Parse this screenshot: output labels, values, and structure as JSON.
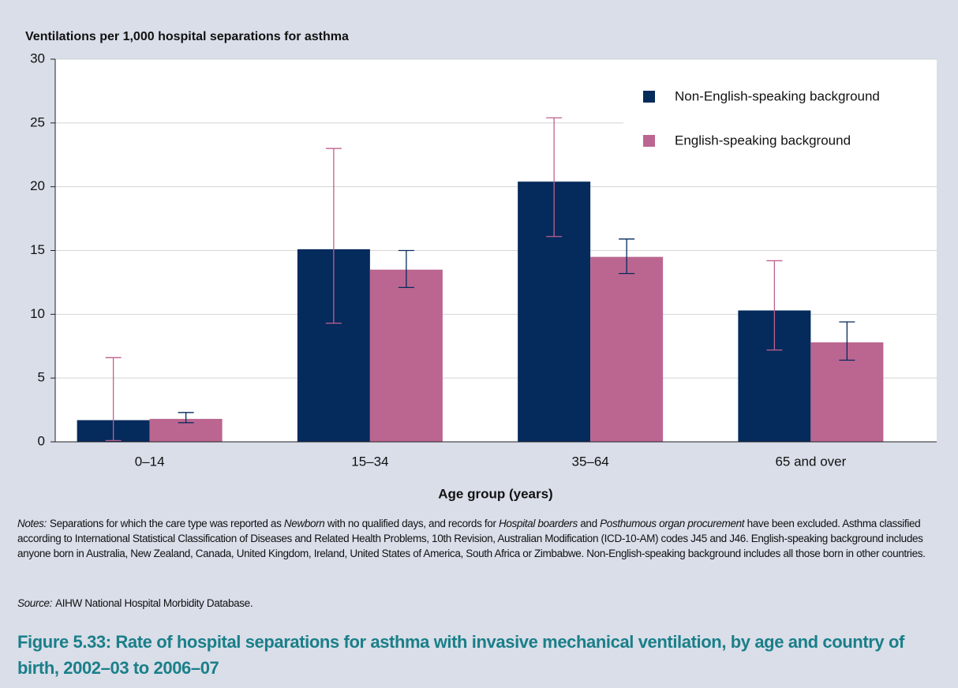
{
  "chart_data": {
    "type": "bar",
    "title": "Ventilations per 1,000 hospital separations for asthma",
    "x_label": "Age group (years)",
    "categories": [
      "0–14",
      "15–34",
      "35–64",
      "65 and over"
    ],
    "series": [
      {
        "name": "Non-English-speaking background",
        "color": "#052a5c",
        "error_color": "#c0608e",
        "values": [
          1.7,
          15.1,
          20.4,
          10.3
        ],
        "ci_low": [
          0.1,
          9.3,
          16.1,
          7.2
        ],
        "ci_high": [
          6.6,
          23.0,
          25.4,
          14.2
        ]
      },
      {
        "name": "English-speaking background",
        "color": "#bb6690",
        "error_color": "#052a5c",
        "values": [
          1.8,
          13.5,
          14.5,
          7.8
        ],
        "ci_low": [
          1.5,
          12.1,
          13.2,
          6.4
        ],
        "ci_high": [
          2.3,
          15.0,
          15.9,
          9.4
        ]
      }
    ],
    "ylim": [
      0,
      30
    ],
    "yticks": [
      0,
      5,
      10,
      15,
      20,
      25,
      30
    ],
    "grid": true,
    "legend": "top-right"
  },
  "notes": {
    "label": "Notes:",
    "segments": [
      {
        "text": "Separations for which the care type was reported as ",
        "italic": false
      },
      {
        "text": "Newborn",
        "italic": true
      },
      {
        "text": " with no qualified days, and records for ",
        "italic": false
      },
      {
        "text": "Hospital boarders",
        "italic": true
      },
      {
        "text": " and ",
        "italic": false
      },
      {
        "text": "Posthumous organ procurement",
        "italic": true
      },
      {
        "text": " have been excluded. Asthma classified according to International Statistical Classification of Diseases and Related Health Problems, 10th Revision, Australian Modification (ICD-10-AM) codes J45 and J46. English-speaking background includes anyone born in Australia, New Zealand, Canada, United Kingdom, Ireland, United States of America, South Africa or Zimbabwe. Non-English-speaking background includes all those born in other countries.",
        "italic": false
      }
    ]
  },
  "source": {
    "label": "Source:",
    "text": "AIHW National Hospital Morbidity Database."
  },
  "caption": "Figure 5.33: Rate of hospital separations for asthma with invasive mechanical ventilation, by age and country of birth, 2002–03 to 2006–07"
}
